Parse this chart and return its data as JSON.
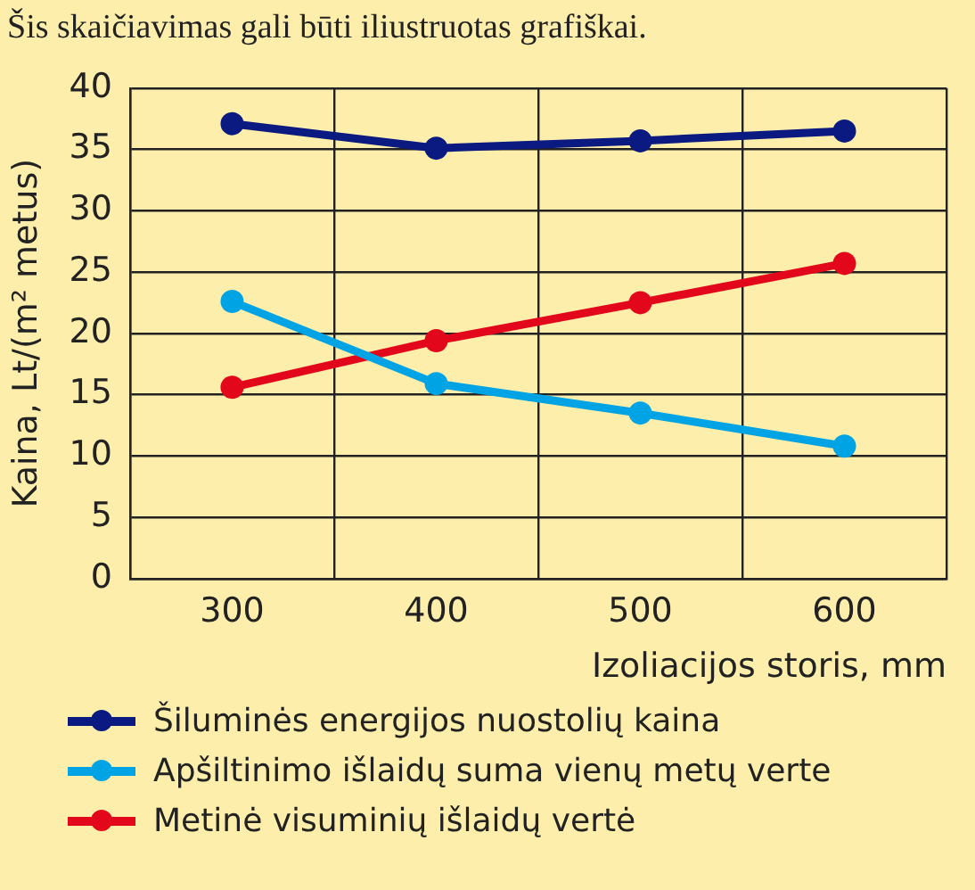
{
  "chart_data": {
    "type": "line",
    "annotations": [
      "Šis skaičiavimas gali būti iliustruotas grafiškai."
    ],
    "xlabel": "Izoliacijos storis, mm",
    "ylabel": "Kaina, Lt/(m² metus)",
    "categories": [
      "300",
      "400",
      "500",
      "600"
    ],
    "series": [
      {
        "name": "Šiluminės energijos nuostolių kaina",
        "color": "#0b1a80",
        "values": [
          37.1,
          35.1,
          35.7,
          36.5
        ]
      },
      {
        "name": "Apšiltinimo išlaidų suma vienų metų verte",
        "color": "#00a4e4",
        "values": [
          22.6,
          15.9,
          13.5,
          10.8
        ]
      },
      {
        "name": "Metinė visuminių išlaidų vertė",
        "color": "#e2071a",
        "values": [
          15.6,
          19.4,
          22.5,
          25.7
        ]
      }
    ],
    "ylim": [
      0,
      40
    ],
    "yticks": [
      0,
      5,
      10,
      15,
      20,
      25,
      30,
      35,
      40
    ],
    "grid": true,
    "legend": "bottom",
    "marker": "circle",
    "line_style": "solid"
  }
}
